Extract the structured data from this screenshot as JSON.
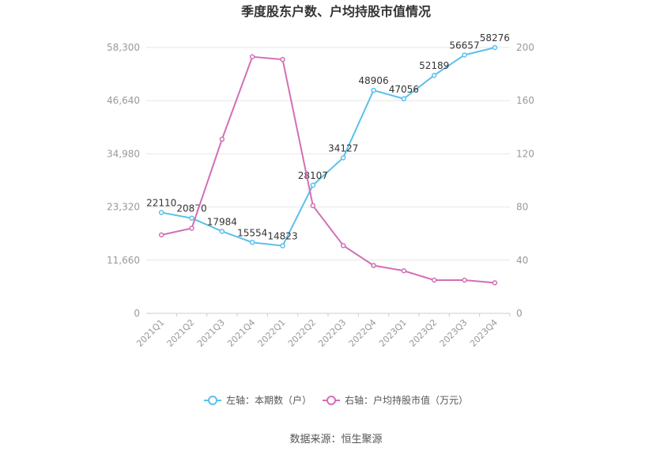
{
  "chart_data": {
    "type": "line",
    "title": "季度股东户数、户均持股市值情况",
    "categories": [
      "2021Q1",
      "2021Q2",
      "2021Q3",
      "2021Q4",
      "2022Q1",
      "2022Q2",
      "2022Q3",
      "2022Q4",
      "2023Q1",
      "2023Q2",
      "2023Q3",
      "2023Q4"
    ],
    "left_axis": {
      "ticks": [
        "0",
        "11,660",
        "23,320",
        "34,980",
        "46,640",
        "58,300"
      ],
      "ylim": [
        0,
        58300
      ]
    },
    "right_axis": {
      "ticks": [
        "0",
        "40",
        "80",
        "120",
        "160",
        "200"
      ],
      "ylim": [
        0,
        200
      ]
    },
    "series": [
      {
        "name": "左轴：本期数（户）",
        "axis": "left",
        "color": "#5bc0eb",
        "values": [
          22110,
          20870,
          17984,
          15554,
          14823,
          28107,
          34127,
          48906,
          47056,
          52189,
          56657,
          58276
        ],
        "labels": [
          "22110",
          "20870",
          "17984",
          "15554",
          "14823",
          "28107",
          "34127",
          "48906",
          "47056",
          "52189",
          "56657",
          "58276"
        ]
      },
      {
        "name": "右轴：户均持股市值（万元）",
        "axis": "right",
        "color": "#d36eb5",
        "values": [
          59,
          64,
          131,
          193,
          191,
          81,
          51,
          36,
          32,
          25,
          25,
          23
        ]
      }
    ],
    "grid": true,
    "legend_position": "bottom"
  },
  "footer": {
    "source": "数据来源：恒生聚源"
  }
}
